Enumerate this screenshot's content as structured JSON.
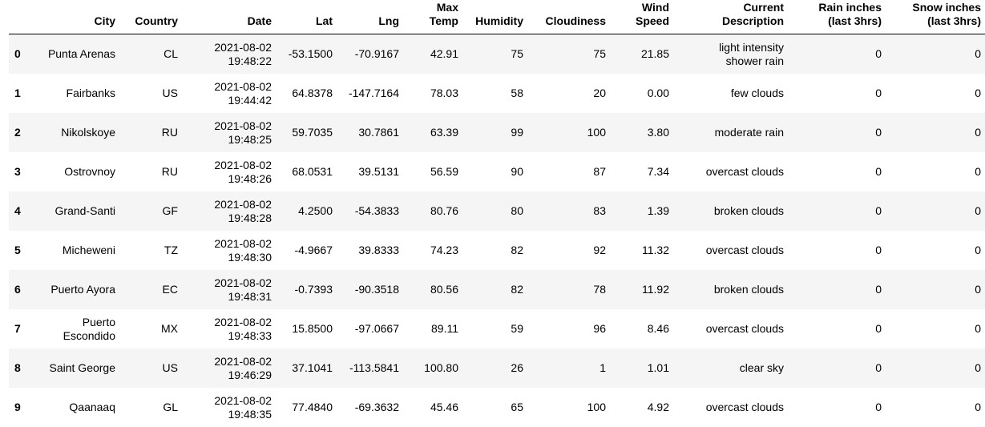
{
  "columns": [
    "",
    "City",
    "Country",
    "Date",
    "Lat",
    "Lng",
    [
      "Max",
      "Temp"
    ],
    "Humidity",
    "Cloudiness",
    [
      "Wind",
      "Speed"
    ],
    [
      "Current",
      "Description"
    ],
    [
      "Rain inches",
      "(last 3hrs)"
    ],
    [
      "Snow inches",
      "(last 3hrs)"
    ]
  ],
  "rows": [
    {
      "index": "0",
      "city": "Punta Arenas",
      "country": "CL",
      "date": [
        "2021-08-02",
        "19:48:22"
      ],
      "lat": "-53.1500",
      "lng": "-70.9167",
      "max_temp": "42.91",
      "humidity": "75",
      "cloudiness": "75",
      "wind_speed": "21.85",
      "description": [
        "light intensity",
        "shower rain"
      ],
      "rain": "0",
      "snow": "0"
    },
    {
      "index": "1",
      "city": "Fairbanks",
      "country": "US",
      "date": [
        "2021-08-02",
        "19:44:42"
      ],
      "lat": "64.8378",
      "lng": "-147.7164",
      "max_temp": "78.03",
      "humidity": "58",
      "cloudiness": "20",
      "wind_speed": "0.00",
      "description": [
        "few clouds"
      ],
      "rain": "0",
      "snow": "0"
    },
    {
      "index": "2",
      "city": "Nikolskoye",
      "country": "RU",
      "date": [
        "2021-08-02",
        "19:48:25"
      ],
      "lat": "59.7035",
      "lng": "30.7861",
      "max_temp": "63.39",
      "humidity": "99",
      "cloudiness": "100",
      "wind_speed": "3.80",
      "description": [
        "moderate rain"
      ],
      "rain": "0",
      "snow": "0"
    },
    {
      "index": "3",
      "city": "Ostrovnoy",
      "country": "RU",
      "date": [
        "2021-08-02",
        "19:48:26"
      ],
      "lat": "68.0531",
      "lng": "39.5131",
      "max_temp": "56.59",
      "humidity": "90",
      "cloudiness": "87",
      "wind_speed": "7.34",
      "description": [
        "overcast clouds"
      ],
      "rain": "0",
      "snow": "0"
    },
    {
      "index": "4",
      "city": "Grand-Santi",
      "country": "GF",
      "date": [
        "2021-08-02",
        "19:48:28"
      ],
      "lat": "4.2500",
      "lng": "-54.3833",
      "max_temp": "80.76",
      "humidity": "80",
      "cloudiness": "83",
      "wind_speed": "1.39",
      "description": [
        "broken clouds"
      ],
      "rain": "0",
      "snow": "0"
    },
    {
      "index": "5",
      "city": "Micheweni",
      "country": "TZ",
      "date": [
        "2021-08-02",
        "19:48:30"
      ],
      "lat": "-4.9667",
      "lng": "39.8333",
      "max_temp": "74.23",
      "humidity": "82",
      "cloudiness": "92",
      "wind_speed": "11.32",
      "description": [
        "overcast clouds"
      ],
      "rain": "0",
      "snow": "0"
    },
    {
      "index": "6",
      "city": "Puerto Ayora",
      "country": "EC",
      "date": [
        "2021-08-02",
        "19:48:31"
      ],
      "lat": "-0.7393",
      "lng": "-90.3518",
      "max_temp": "80.56",
      "humidity": "82",
      "cloudiness": "78",
      "wind_speed": "11.92",
      "description": [
        "broken clouds"
      ],
      "rain": "0",
      "snow": "0"
    },
    {
      "index": "7",
      "city": [
        "Puerto",
        "Escondido"
      ],
      "country": "MX",
      "date": [
        "2021-08-02",
        "19:48:33"
      ],
      "lat": "15.8500",
      "lng": "-97.0667",
      "max_temp": "89.11",
      "humidity": "59",
      "cloudiness": "96",
      "wind_speed": "8.46",
      "description": [
        "overcast clouds"
      ],
      "rain": "0",
      "snow": "0"
    },
    {
      "index": "8",
      "city": "Saint George",
      "country": "US",
      "date": [
        "2021-08-02",
        "19:46:29"
      ],
      "lat": "37.1041",
      "lng": "-113.5841",
      "max_temp": "100.80",
      "humidity": "26",
      "cloudiness": "1",
      "wind_speed": "1.01",
      "description": [
        "clear sky"
      ],
      "rain": "0",
      "snow": "0"
    },
    {
      "index": "9",
      "city": "Qaanaaq",
      "country": "GL",
      "date": [
        "2021-08-02",
        "19:48:35"
      ],
      "lat": "77.4840",
      "lng": "-69.3632",
      "max_temp": "45.46",
      "humidity": "65",
      "cloudiness": "100",
      "wind_speed": "4.92",
      "description": [
        "overcast clouds"
      ],
      "rain": "0",
      "snow": "0"
    }
  ]
}
